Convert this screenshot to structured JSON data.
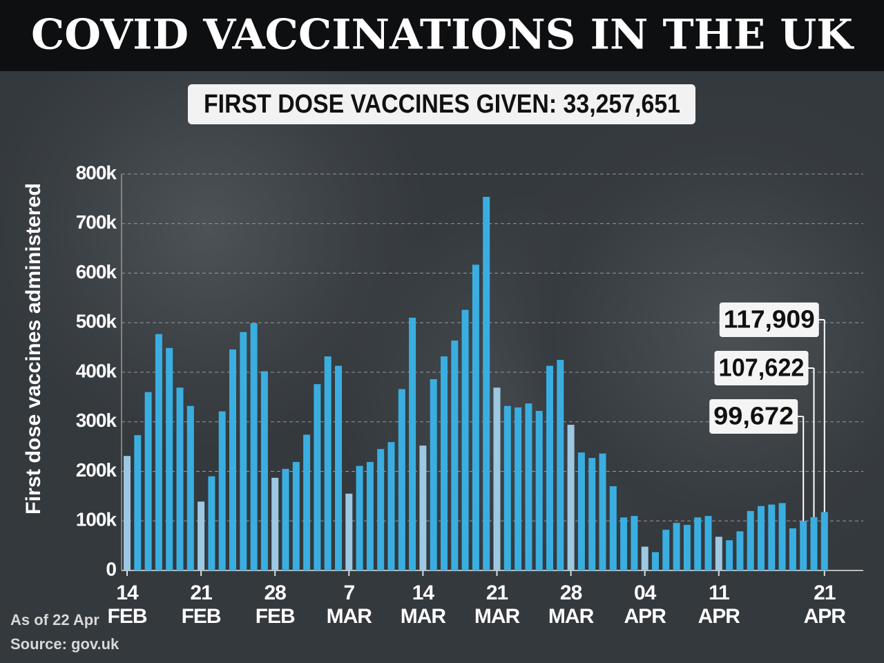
{
  "chart_data": {
    "type": "bar",
    "title": "COVID VACCINATIONS IN THE UK",
    "subtitle": "FIRST DOSE VACCINES GIVEN: 33,257,651",
    "y_label": "First dose vaccines administered",
    "note": "As of 22 Apr",
    "source": "Source: gov.uk",
    "categories": [
      "14 FEB",
      null,
      null,
      null,
      null,
      null,
      null,
      "21 FEB",
      null,
      null,
      null,
      null,
      null,
      null,
      "28 FEB",
      null,
      null,
      null,
      null,
      null,
      null,
      "7 MAR",
      null,
      null,
      null,
      null,
      null,
      null,
      "14 MAR",
      null,
      null,
      null,
      null,
      null,
      null,
      "21 MAR",
      null,
      null,
      null,
      null,
      null,
      null,
      "28 MAR",
      null,
      null,
      null,
      null,
      null,
      null,
      "04 APR",
      null,
      null,
      null,
      null,
      null,
      null,
      "11 APR",
      null,
      null,
      null,
      null,
      null,
      null,
      null,
      null,
      null,
      "21 APR"
    ],
    "values": [
      231000,
      273000,
      360000,
      477000,
      449000,
      369000,
      332000,
      139000,
      190000,
      321000,
      446000,
      481000,
      499000,
      402000,
      187000,
      205000,
      219000,
      274000,
      376000,
      432000,
      413000,
      155000,
      211000,
      219000,
      245000,
      259000,
      366000,
      510000,
      252000,
      386000,
      432000,
      464000,
      526000,
      617000,
      754000,
      369000,
      332000,
      329000,
      337000,
      322000,
      413000,
      425000,
      294000,
      238000,
      227000,
      236000,
      170000,
      107000,
      110000,
      48000,
      37000,
      82000,
      96000,
      92000,
      107000,
      110000,
      68000,
      61000,
      79000,
      120000,
      130000,
      133000,
      136000,
      85000,
      99672,
      107622,
      117909
    ],
    "value_labels": [
      null,
      null,
      null,
      null,
      null,
      null,
      null,
      null,
      null,
      null,
      null,
      null,
      null,
      null,
      null,
      null,
      null,
      null,
      null,
      null,
      null,
      null,
      null,
      null,
      null,
      null,
      null,
      null,
      null,
      null,
      null,
      null,
      null,
      null,
      null,
      null,
      null,
      null,
      null,
      null,
      null,
      null,
      null,
      null,
      null,
      null,
      null,
      null,
      null,
      null,
      null,
      null,
      null,
      null,
      null,
      null,
      null,
      null,
      null,
      null,
      null,
      null,
      null,
      null,
      "99,672",
      "107,622",
      "117,909"
    ],
    "colors": [
      "#9cc8e2",
      "#3aaee0",
      "#3aaee0",
      "#3aaee0",
      "#3aaee0",
      "#3aaee0",
      "#3aaee0",
      "#9cc8e2",
      "#3aaee0",
      "#3aaee0",
      "#3aaee0",
      "#3aaee0",
      "#3aaee0",
      "#3aaee0",
      "#9cc8e2",
      "#3aaee0",
      "#3aaee0",
      "#3aaee0",
      "#3aaee0",
      "#3aaee0",
      "#3aaee0",
      "#9cc8e2",
      "#3aaee0",
      "#3aaee0",
      "#3aaee0",
      "#3aaee0",
      "#3aaee0",
      "#3aaee0",
      "#9cc8e2",
      "#3aaee0",
      "#3aaee0",
      "#3aaee0",
      "#3aaee0",
      "#3aaee0",
      "#3aaee0",
      "#9cc8e2",
      "#3aaee0",
      "#3aaee0",
      "#3aaee0",
      "#3aaee0",
      "#3aaee0",
      "#3aaee0",
      "#9cc8e2",
      "#3aaee0",
      "#3aaee0",
      "#3aaee0",
      "#3aaee0",
      "#3aaee0",
      "#3aaee0",
      "#9cc8e2",
      "#3aaee0",
      "#3aaee0",
      "#3aaee0",
      "#3aaee0",
      "#3aaee0",
      "#3aaee0",
      "#9cc8e2",
      "#3aaee0",
      "#3aaee0",
      "#3aaee0",
      "#3aaee0",
      "#3aaee0",
      "#3aaee0",
      "#3aaee0",
      "#3aaee0",
      "#3aaee0",
      "#3aaee0"
    ],
    "ylim": [
      0,
      800000
    ],
    "yticks": [
      0,
      {
        "value": 100000,
        "label": "100k"
      },
      {
        "value": 200000,
        "label": "200k"
      },
      {
        "value": 300000,
        "label": "300k"
      },
      {
        "value": 400000,
        "label": "400k"
      },
      {
        "value": 500000,
        "label": "500k"
      },
      {
        "value": 600000,
        "label": "600k"
      },
      {
        "value": 700000,
        "label": "700k"
      },
      {
        "value": 800000,
        "label": "800k"
      }
    ],
    "grid": true
  }
}
